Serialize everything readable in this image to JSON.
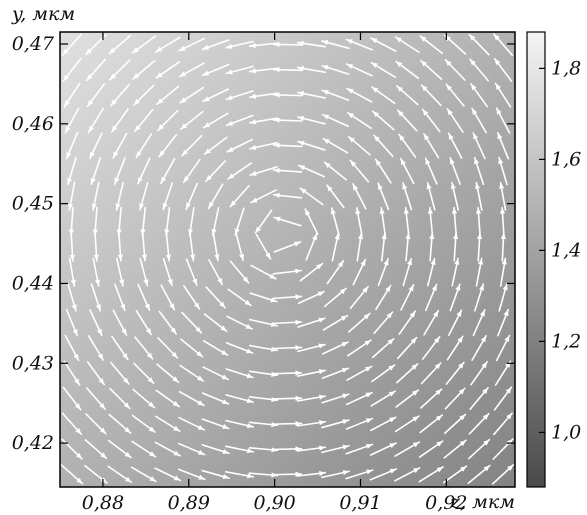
{
  "chart_data": {
    "type": "heatmap",
    "subtype": "vector-field",
    "x_axis": {
      "label": "z, мкм",
      "range": [
        0.875,
        0.928
      ],
      "ticks": [
        0.88,
        0.89,
        0.9,
        0.91,
        0.92
      ],
      "tick_labels": [
        "0,88",
        "0,89",
        "0,90",
        "0,91",
        "0,92"
      ]
    },
    "y_axis": {
      "label": "y, мкм",
      "range": [
        0.4145,
        0.4715
      ],
      "ticks": [
        0.42,
        0.43,
        0.44,
        0.45,
        0.46,
        0.47
      ],
      "tick_labels": [
        "0,42",
        "0,43",
        "0,44",
        "0,45",
        "0,46",
        "0,47"
      ]
    },
    "colorbar": {
      "range": [
        0.88,
        1.88
      ],
      "ticks": [
        1.0,
        1.2,
        1.4,
        1.6,
        1.8
      ],
      "tick_labels": [
        "1,0",
        "1,2",
        "1,4",
        "1,6",
        "1,8"
      ],
      "colormap": "grayscale",
      "low_color": "#4a4a4a",
      "high_color": "#f4f4f4"
    },
    "field": {
      "background": "linear gradient, brighter toward upper-left",
      "value_upper_left": 1.82,
      "value_lower_right": 1.02,
      "vortex_center": [
        0.901,
        0.446
      ],
      "rotation": "counterclockwise",
      "arrow_color": "#ffffff",
      "grid": {
        "columns": 19,
        "rows": 18
      }
    },
    "grid": false
  }
}
